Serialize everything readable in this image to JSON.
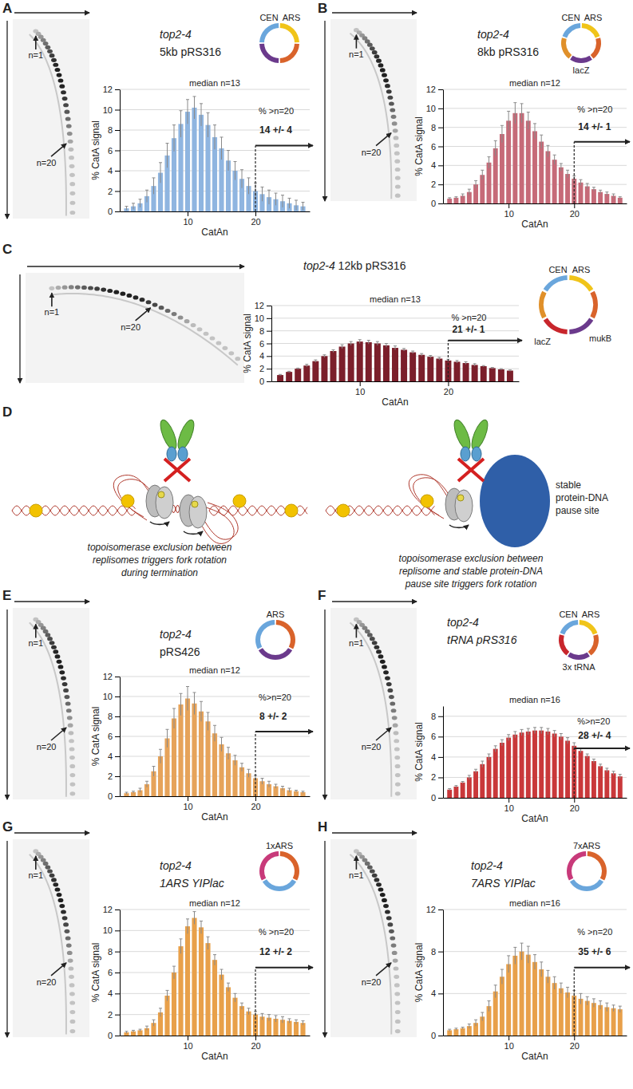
{
  "chart_data": [
    {
      "panel": "A",
      "type": "bar",
      "title": "top2-4 5kb pRS316",
      "x_label": "CatAn",
      "y_label": "% CatA signal",
      "x": [
        1,
        2,
        3,
        4,
        5,
        6,
        7,
        8,
        9,
        10,
        11,
        12,
        13,
        14,
        15,
        16,
        17,
        18,
        19,
        20,
        21,
        22,
        23,
        24,
        25,
        26,
        27
      ],
      "values": [
        0.3,
        0.5,
        0.8,
        1.5,
        2.5,
        3.8,
        5.5,
        7.2,
        8.6,
        9.8,
        10.2,
        9.5,
        8.5,
        7.3,
        6.2,
        5.0,
        4.0,
        3.2,
        2.5,
        2.0,
        1.7,
        1.4,
        1.2,
        1.0,
        0.8,
        0.6,
        0.5
      ],
      "errors": [
        0.2,
        0.3,
        0.4,
        0.6,
        0.8,
        1.0,
        1.2,
        1.3,
        1.3,
        1.2,
        1.1,
        1.1,
        1.2,
        1.2,
        1.1,
        1.0,
        0.9,
        0.9,
        0.8,
        0.8,
        0.7,
        0.7,
        0.6,
        0.6,
        0.5,
        0.5,
        0.4
      ],
      "color": "#8fb5e0",
      "xlim": [
        0,
        28
      ],
      "xticks": [
        10,
        20
      ],
      "ylim": [
        0,
        12
      ],
      "yticks": [
        0,
        2,
        4,
        6,
        8,
        10,
        12
      ],
      "grid": true,
      "annotations": {
        "median_label": "median n=13",
        "threshold": 20,
        "threshold_label": "% >n=20",
        "above_threshold": "14 +/- 4"
      },
      "gel_labels": [
        "n=1",
        "n=20"
      ],
      "plasmid_labels": [
        "CEN",
        "ARS"
      ]
    },
    {
      "panel": "B",
      "type": "bar",
      "title": "top2-4 8kb pRS316",
      "x_label": "CatAn",
      "y_label": "% CatA signal",
      "x": [
        1,
        2,
        3,
        4,
        5,
        6,
        7,
        8,
        9,
        10,
        11,
        12,
        13,
        14,
        15,
        16,
        17,
        18,
        19,
        20,
        21,
        22,
        23,
        24,
        25,
        26,
        27
      ],
      "values": [
        0.5,
        0.6,
        0.8,
        1.2,
        2.0,
        3.0,
        4.3,
        5.8,
        7.3,
        8.7,
        9.5,
        9.5,
        8.7,
        7.6,
        6.5,
        5.5,
        4.6,
        3.8,
        3.1,
        2.6,
        2.2,
        1.8,
        1.5,
        1.2,
        1.0,
        0.8,
        0.6
      ],
      "errors": [
        0.1,
        0.1,
        0.2,
        0.3,
        0.4,
        0.5,
        0.6,
        0.8,
        0.9,
        1.0,
        1.1,
        1.0,
        0.9,
        0.8,
        0.7,
        0.6,
        0.5,
        0.4,
        0.4,
        0.3,
        0.3,
        0.3,
        0.2,
        0.2,
        0.2,
        0.2,
        0.1
      ],
      "color": "#c66a78",
      "xlim": [
        0,
        28
      ],
      "xticks": [
        10,
        20
      ],
      "ylim": [
        0,
        12
      ],
      "yticks": [
        0,
        2,
        4,
        6,
        8,
        10,
        12
      ],
      "grid": true,
      "annotations": {
        "median_label": "median n=12",
        "threshold": 20,
        "threshold_label": "% >n=20",
        "above_threshold": "14 +/- 1"
      },
      "gel_labels": [
        "n=1",
        "n=20"
      ],
      "plasmid_labels": [
        "CEN",
        "ARS",
        "lacZ"
      ]
    },
    {
      "panel": "C",
      "type": "bar",
      "title": "top2-4 12kb pRS316",
      "x_label": "CatAn",
      "y_label": "% CatA signal",
      "x": [
        1,
        2,
        3,
        4,
        5,
        6,
        7,
        8,
        9,
        10,
        11,
        12,
        13,
        14,
        15,
        16,
        17,
        18,
        19,
        20,
        21,
        22,
        23,
        24,
        25,
        26,
        27
      ],
      "values": [
        1.0,
        1.5,
        2.0,
        2.5,
        3.2,
        4.0,
        4.8,
        5.5,
        6.0,
        6.3,
        6.2,
        6.0,
        5.7,
        5.3,
        5.0,
        4.6,
        4.2,
        3.9,
        3.6,
        3.3,
        3.1,
        2.9,
        2.6,
        2.4,
        2.1,
        1.9,
        1.7
      ],
      "errors": [
        0.1,
        0.1,
        0.1,
        0.2,
        0.2,
        0.2,
        0.2,
        0.3,
        0.3,
        0.3,
        0.3,
        0.3,
        0.3,
        0.3,
        0.2,
        0.2,
        0.2,
        0.2,
        0.2,
        0.2,
        0.2,
        0.2,
        0.2,
        0.1,
        0.1,
        0.1,
        0.1
      ],
      "color": "#7b1f2b",
      "xlim": [
        0,
        28
      ],
      "xticks": [
        10,
        20
      ],
      "ylim": [
        0,
        12
      ],
      "yticks": [
        0,
        2,
        4,
        6,
        8,
        10,
        12
      ],
      "grid": true,
      "annotations": {
        "median_label": "median n=13",
        "threshold": 20,
        "threshold_label": "% >n=20",
        "above_threshold": "21 +/- 1"
      },
      "gel_labels": [
        "n=1",
        "n=20"
      ],
      "plasmid_labels": [
        "CEN",
        "ARS",
        "lacZ",
        "mukB"
      ]
    },
    {
      "panel": "E",
      "type": "bar",
      "title": "top2-4 pRS426",
      "x_label": "CatAn",
      "y_label": "% CatA signal",
      "x": [
        1,
        2,
        3,
        4,
        5,
        6,
        7,
        8,
        9,
        10,
        11,
        12,
        13,
        14,
        15,
        16,
        17,
        18,
        19,
        20,
        21,
        22,
        23,
        24,
        25,
        26,
        27
      ],
      "values": [
        0.3,
        0.4,
        0.6,
        1.2,
        2.5,
        4.0,
        5.8,
        7.8,
        9.2,
        9.8,
        9.3,
        8.5,
        7.5,
        6.3,
        5.2,
        4.3,
        3.6,
        2.9,
        2.3,
        1.8,
        1.5,
        1.2,
        1.0,
        0.8,
        0.6,
        0.5,
        0.4
      ],
      "errors": [
        0.1,
        0.1,
        0.2,
        0.3,
        0.5,
        0.7,
        0.9,
        1.0,
        1.1,
        1.2,
        1.1,
        1.0,
        0.9,
        0.8,
        0.7,
        0.6,
        0.5,
        0.4,
        0.4,
        0.3,
        0.3,
        0.3,
        0.2,
        0.2,
        0.2,
        0.1,
        0.1
      ],
      "color": "#e6a35a",
      "xlim": [
        0,
        28
      ],
      "xticks": [
        10,
        20
      ],
      "ylim": [
        0,
        12
      ],
      "yticks": [
        0,
        2,
        4,
        6,
        8,
        10,
        12
      ],
      "grid": true,
      "annotations": {
        "median_label": "median n=12",
        "threshold": 20,
        "threshold_label": "%>n=20",
        "above_threshold": "8 +/- 2"
      },
      "gel_labels": [
        "n=1",
        "n=20"
      ],
      "plasmid_labels": [
        "ARS"
      ]
    },
    {
      "panel": "F",
      "type": "bar",
      "title": "top2-4 tRNA pRS316",
      "x_label": "CatAn",
      "y_label": "% CatA signal",
      "x": [
        1,
        2,
        3,
        4,
        5,
        6,
        7,
        8,
        9,
        10,
        11,
        12,
        13,
        14,
        15,
        16,
        17,
        18,
        19,
        20,
        21,
        22,
        23,
        24,
        25,
        26,
        27
      ],
      "values": [
        0.8,
        1.1,
        1.5,
        2.0,
        2.6,
        3.3,
        4.0,
        4.8,
        5.4,
        5.9,
        6.2,
        6.4,
        6.5,
        6.6,
        6.6,
        6.5,
        6.3,
        6.0,
        5.6,
        5.1,
        4.6,
        4.1,
        3.6,
        3.1,
        2.7,
        2.4,
        2.1
      ],
      "errors": [
        0.1,
        0.1,
        0.1,
        0.2,
        0.2,
        0.3,
        0.3,
        0.3,
        0.3,
        0.3,
        0.3,
        0.3,
        0.3,
        0.3,
        0.3,
        0.3,
        0.3,
        0.3,
        0.3,
        0.3,
        0.2,
        0.2,
        0.2,
        0.2,
        0.2,
        0.2,
        0.2
      ],
      "color": "#c9383a",
      "xlim": [
        0,
        28
      ],
      "xticks": [
        10,
        20
      ],
      "ylim": [
        0,
        9
      ],
      "yticks": [
        0,
        2,
        4,
        6,
        8
      ],
      "grid": true,
      "annotations": {
        "median_label": "median n=16",
        "threshold": 20,
        "threshold_label": "%>n=20",
        "above_threshold": "28 +/- 4"
      },
      "gel_labels": [
        "n=1",
        "n=20"
      ],
      "plasmid_labels": [
        "CEN",
        "ARS",
        "3x tRNA"
      ]
    },
    {
      "panel": "G",
      "type": "bar",
      "title": "top2-4 1ARS YIPlac",
      "x_label": "CatAn",
      "y_label": "% CatA signal",
      "x": [
        1,
        2,
        3,
        4,
        5,
        6,
        7,
        8,
        9,
        10,
        11,
        12,
        13,
        14,
        15,
        16,
        17,
        18,
        19,
        20,
        21,
        22,
        23,
        24,
        25,
        26,
        27
      ],
      "values": [
        0.3,
        0.4,
        0.5,
        0.7,
        1.2,
        2.2,
        3.8,
        6.0,
        8.5,
        10.4,
        11.2,
        10.3,
        8.8,
        7.2,
        5.8,
        4.6,
        3.6,
        2.8,
        2.3,
        2.0,
        1.8,
        1.7,
        1.6,
        1.5,
        1.4,
        1.3,
        1.2
      ],
      "errors": [
        0.1,
        0.1,
        0.1,
        0.2,
        0.3,
        0.4,
        0.5,
        0.6,
        0.7,
        0.7,
        0.6,
        0.6,
        0.6,
        0.5,
        0.5,
        0.4,
        0.4,
        0.3,
        0.3,
        0.3,
        0.3,
        0.3,
        0.3,
        0.3,
        0.2,
        0.2,
        0.2
      ],
      "color": "#e8a04a",
      "xlim": [
        0,
        28
      ],
      "xticks": [
        10,
        20
      ],
      "ylim": [
        0,
        12
      ],
      "yticks": [
        0,
        2,
        4,
        6,
        8,
        10,
        12
      ],
      "grid": true,
      "annotations": {
        "median_label": "median n=12",
        "threshold": 20,
        "threshold_label": "% >n=20",
        "above_threshold": "12 +/- 2"
      },
      "gel_labels": [
        "n=1",
        "n=20"
      ],
      "plasmid_labels": [
        "1xARS"
      ]
    },
    {
      "panel": "H",
      "type": "bar",
      "title": "top2-4 7ARS YIPlac",
      "x_label": "CatAn",
      "y_label": "% CatA signal",
      "x": [
        1,
        2,
        3,
        4,
        5,
        6,
        7,
        8,
        9,
        10,
        11,
        12,
        13,
        14,
        15,
        16,
        17,
        18,
        19,
        20,
        21,
        22,
        23,
        24,
        25,
        26,
        27
      ],
      "values": [
        0.5,
        0.6,
        0.7,
        0.9,
        1.2,
        1.8,
        2.8,
        4.2,
        5.6,
        6.8,
        7.6,
        8.0,
        7.7,
        7.0,
        6.3,
        5.6,
        5.0,
        4.5,
        4.1,
        3.8,
        3.5,
        3.3,
        3.1,
        2.9,
        2.7,
        2.6,
        2.5
      ],
      "errors": [
        0.1,
        0.1,
        0.1,
        0.2,
        0.3,
        0.4,
        0.5,
        0.6,
        0.7,
        0.8,
        0.8,
        0.8,
        0.8,
        0.7,
        0.7,
        0.6,
        0.6,
        0.5,
        0.5,
        0.5,
        0.5,
        0.4,
        0.4,
        0.4,
        0.4,
        0.3,
        0.3
      ],
      "color": "#e8a04a",
      "xlim": [
        0,
        28
      ],
      "xticks": [
        10,
        20
      ],
      "ylim": [
        0,
        12
      ],
      "yticks": [
        0,
        4,
        8,
        12
      ],
      "grid": true,
      "annotations": {
        "median_label": "median n=16",
        "threshold": 20,
        "threshold_label": "% >n=20",
        "above_threshold": "35 +/- 6"
      },
      "gel_labels": [
        "n=1",
        "n=20"
      ],
      "plasmid_labels": [
        "7xARS"
      ]
    }
  ],
  "diagram": {
    "label": "D",
    "left_caption": [
      "topoisomerase exclusion between",
      "replisomes triggers fork rotation",
      "during termination"
    ],
    "right_caption": [
      "topoisomerase exclusion between",
      "replisome and stable protein-DNA",
      "pause site triggers fork rotation"
    ],
    "pause_site_label": [
      "stable",
      "protein-DNA",
      "pause site"
    ]
  }
}
